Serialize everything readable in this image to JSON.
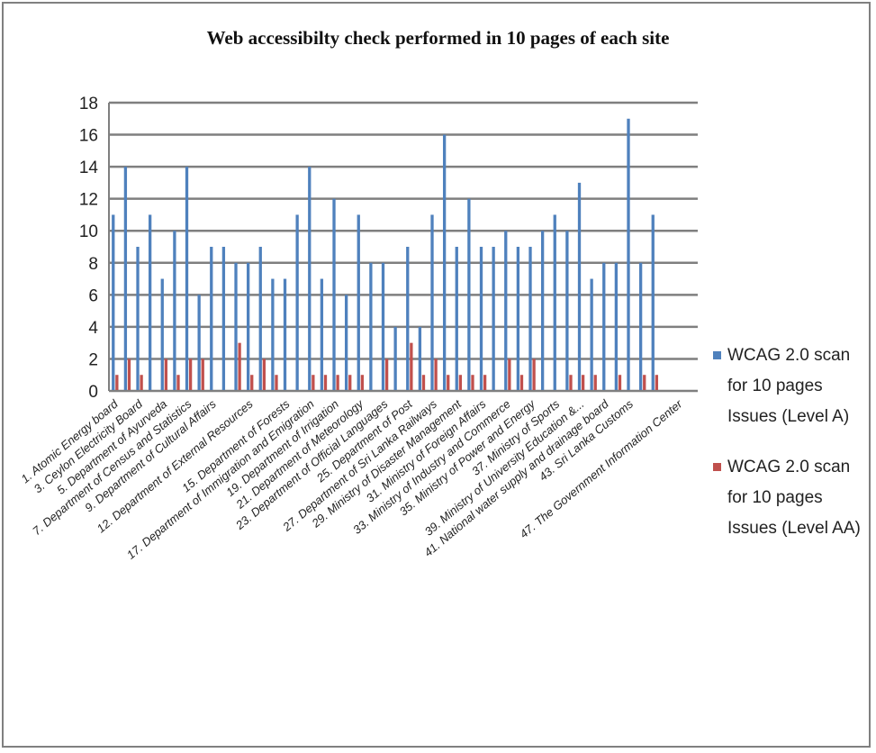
{
  "chart_data": {
    "type": "bar",
    "title": "Web accessibilty check performed in 10 pages of each site",
    "xlabel": "",
    "ylabel": "",
    "ylim": [
      0,
      18
    ],
    "yticks": [
      0,
      2,
      4,
      6,
      8,
      10,
      12,
      14,
      16,
      18
    ],
    "grid": true,
    "legend_position": "right",
    "categories": [
      "1",
      "2",
      "3",
      "4",
      "5",
      "6",
      "7",
      "8",
      "9",
      "10",
      "11",
      "12",
      "13",
      "14",
      "15",
      "16",
      "17",
      "18",
      "19",
      "20",
      "21",
      "22",
      "23",
      "24",
      "25",
      "26",
      "27",
      "28",
      "29",
      "30",
      "31",
      "32",
      "33",
      "34",
      "35",
      "36",
      "37",
      "38",
      "39",
      "40",
      "41",
      "42",
      "43",
      "44",
      "45",
      "46",
      "47",
      "48"
    ],
    "tick_labels": [
      {
        "index": 0,
        "text": "1.     Atomic Energy board"
      },
      {
        "index": 2,
        "text": "3.     Ceylon Electricity Board"
      },
      {
        "index": 4,
        "text": "5.     Department of Ayurveda"
      },
      {
        "index": 6,
        "text": "7.     Department of Census and Statistics"
      },
      {
        "index": 8,
        "text": "9.     Department of Cultural Affairs"
      },
      {
        "index": 11,
        "text": "12. Department of External Resources"
      },
      {
        "index": 14,
        "text": "15.  Department of Forests"
      },
      {
        "index": 16,
        "text": "17. Department of Immigration and Emigration"
      },
      {
        "index": 18,
        "text": "19. Department of Irrigation"
      },
      {
        "index": 20,
        "text": "21. Department of Meteorology"
      },
      {
        "index": 22,
        "text": "23. Department of Official Languages"
      },
      {
        "index": 24,
        "text": "25.  Department of Post"
      },
      {
        "index": 26,
        "text": "27. Department of Sri Lanka Railways"
      },
      {
        "index": 28,
        "text": "29. Ministry of Disaster Management"
      },
      {
        "index": 30,
        "text": "31. Ministry of Foreign Affairs"
      },
      {
        "index": 32,
        "text": "33. Ministry of Industry and Commerce"
      },
      {
        "index": 34,
        "text": "35.  Ministry of Power and Energy"
      },
      {
        "index": 36,
        "text": "37.  Ministry of Sports"
      },
      {
        "index": 38,
        "text": "39. Ministry of University Education &..."
      },
      {
        "index": 40,
        "text": "41. National water supply and drainage board"
      },
      {
        "index": 42,
        "text": "43.  Sri Lanka Customs"
      },
      {
        "index": 46,
        "text": "47.  The Government Information Center"
      }
    ],
    "series": [
      {
        "name": "WCAG 2.0 scan for 10 pages Issues (Level A)",
        "color": "#4F81BD",
        "values": [
          11,
          14,
          9,
          11,
          7,
          10,
          14,
          6,
          9,
          9,
          8,
          8,
          9,
          7,
          7,
          11,
          14,
          7,
          12,
          6,
          11,
          8,
          8,
          4,
          9,
          4,
          11,
          16,
          9,
          12,
          9,
          9,
          10,
          9,
          9,
          10,
          11,
          10,
          13,
          7,
          8,
          8,
          17,
          8,
          11,
          0,
          0,
          0
        ]
      },
      {
        "name": "WCAG 2.0 scan for 10 pages Issues (Level AA)",
        "color": "#C0504D",
        "values": [
          1,
          2,
          1,
          0,
          2,
          1,
          2,
          2,
          0,
          0,
          3,
          1,
          2,
          1,
          0,
          0,
          1,
          1,
          1,
          1,
          1,
          0,
          2,
          0,
          3,
          1,
          2,
          1,
          1,
          1,
          1,
          0,
          2,
          1,
          2,
          0,
          0,
          1,
          1,
          1,
          0,
          1,
          0,
          1,
          1,
          0,
          0,
          0
        ]
      }
    ]
  },
  "legend": {
    "items": [
      {
        "label": "WCAG 2.0 scan for 10 pages Issues (Level A)",
        "color": "#4F81BD"
      },
      {
        "label": "WCAG 2.0 scan for 10 pages Issues (Level AA)",
        "color": "#C0504D"
      }
    ]
  }
}
